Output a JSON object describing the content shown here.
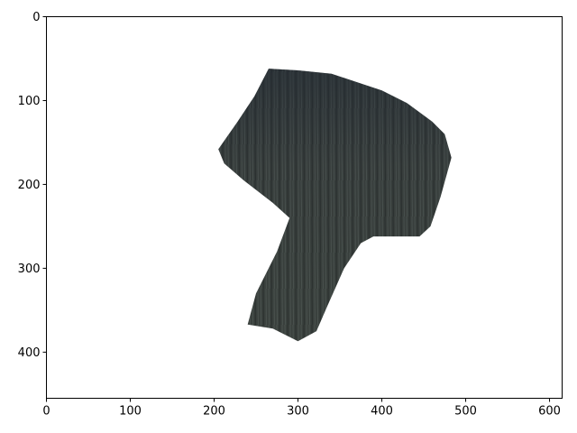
{
  "chart_data": {
    "type": "image",
    "title": "",
    "xlabel": "",
    "ylabel": "",
    "xlim": [
      0,
      615
    ],
    "ylim": [
      455,
      0
    ],
    "y_inverted": true,
    "grid": false,
    "xticks": [
      0,
      100,
      200,
      300,
      400,
      500,
      600
    ],
    "yticks": [
      0,
      100,
      200,
      300,
      400
    ],
    "xtick_labels": [
      "0",
      "100",
      "200",
      "300",
      "400",
      "500",
      "600"
    ],
    "ytick_labels": [
      "0",
      "100",
      "200",
      "300",
      "400"
    ],
    "image_content": {
      "description_name": "masked-dark-texture-region",
      "fill_color": "#3a3f3c",
      "outline_points": [
        [
          265,
          62
        ],
        [
          300,
          64
        ],
        [
          340,
          68
        ],
        [
          370,
          78
        ],
        [
          400,
          88
        ],
        [
          430,
          103
        ],
        [
          460,
          125
        ],
        [
          475,
          140
        ],
        [
          483,
          168
        ],
        [
          470,
          215
        ],
        [
          458,
          250
        ],
        [
          445,
          262
        ],
        [
          390,
          262
        ],
        [
          375,
          270
        ],
        [
          355,
          300
        ],
        [
          335,
          345
        ],
        [
          322,
          375
        ],
        [
          300,
          387
        ],
        [
          270,
          372
        ],
        [
          240,
          367
        ],
        [
          250,
          330
        ],
        [
          275,
          280
        ],
        [
          290,
          240
        ],
        [
          270,
          222
        ],
        [
          235,
          195
        ],
        [
          212,
          175
        ],
        [
          205,
          158
        ],
        [
          228,
          125
        ],
        [
          248,
          95
        ]
      ]
    }
  }
}
